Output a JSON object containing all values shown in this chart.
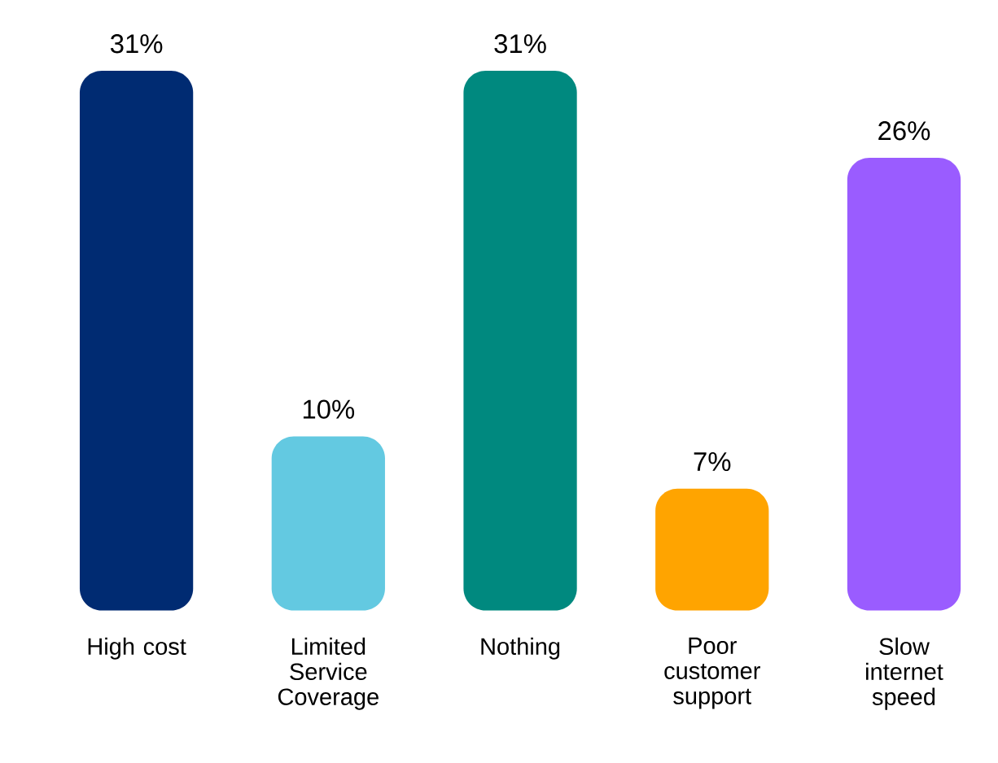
{
  "chart_data": {
    "type": "bar",
    "categories": [
      "High cost",
      "Limited Service Coverage",
      "Nothing",
      "Poor customer support",
      "Slow internet speed"
    ],
    "values": [
      31,
      10,
      31,
      7,
      26
    ],
    "colors": [
      "#002b72",
      "#63c9e1",
      "#00897f",
      "#ffa400",
      "#9a5cff"
    ],
    "data_labels": true,
    "value_labels": [
      "31%",
      "10%",
      "31%",
      "7%",
      "26%"
    ]
  }
}
